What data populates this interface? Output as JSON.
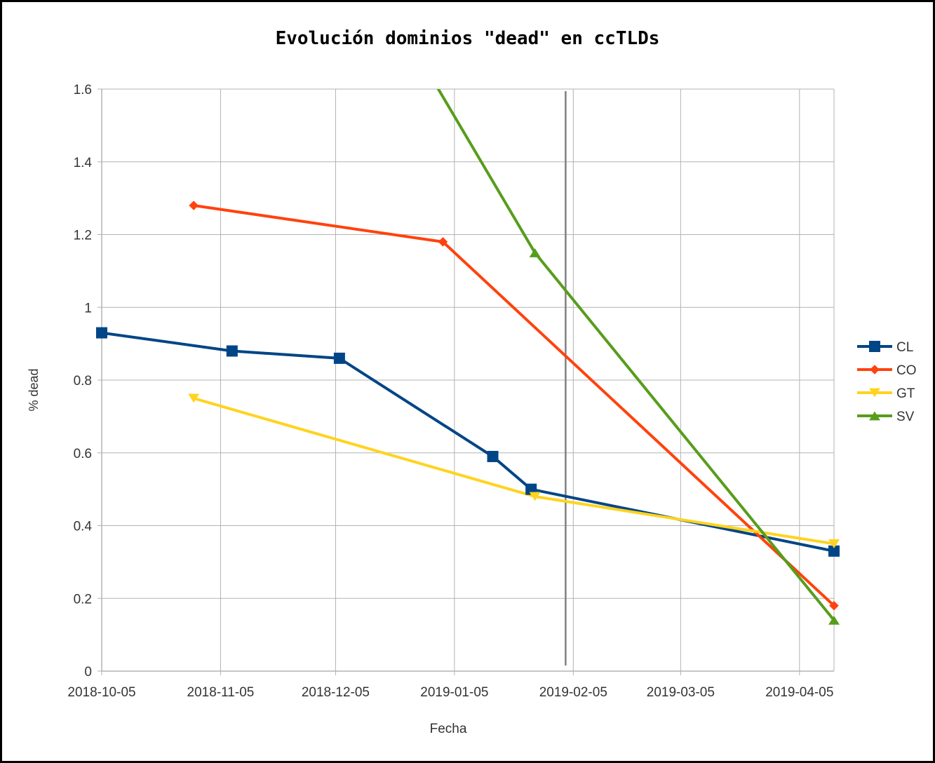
{
  "chart_data": {
    "type": "line",
    "title": "Evolución dominios \"dead\" en ccTLDs",
    "xlabel": "Fecha",
    "ylabel": "% dead",
    "x_ticks": [
      "2018-10-05",
      "2018-11-05",
      "2018-12-05",
      "2019-01-05",
      "2019-02-05",
      "2019-03-05",
      "2019-04-05"
    ],
    "y_ticks": [
      "0",
      "0.2",
      "0.4",
      "0.6",
      "0.8",
      "1",
      "1.2",
      "1.4",
      "1.6"
    ],
    "xlim": [
      "2018-10-05",
      "2019-04-14"
    ],
    "ylim": [
      0,
      1.6
    ],
    "grid": true,
    "legend_position": "right",
    "reference_line": {
      "x": "2019-02-03"
    },
    "series": [
      {
        "name": "CL",
        "color": "#004586",
        "marker": "square",
        "points": [
          {
            "x": "2018-10-05",
            "y": 0.93
          },
          {
            "x": "2018-11-08",
            "y": 0.88
          },
          {
            "x": "2018-12-06",
            "y": 0.86
          },
          {
            "x": "2019-01-15",
            "y": 0.59
          },
          {
            "x": "2019-01-25",
            "y": 0.5
          },
          {
            "x": "2019-04-14",
            "y": 0.33
          }
        ]
      },
      {
        "name": "CO",
        "color": "#ff420e",
        "marker": "diamond",
        "points": [
          {
            "x": "2018-10-29",
            "y": 1.28
          },
          {
            "x": "2019-01-02",
            "y": 1.18
          },
          {
            "x": "2019-04-14",
            "y": 0.18
          }
        ]
      },
      {
        "name": "GT",
        "color": "#ffd320",
        "marker": "triangle-down",
        "points": [
          {
            "x": "2018-10-29",
            "y": 0.75
          },
          {
            "x": "2019-01-26",
            "y": 0.48
          },
          {
            "x": "2019-04-14",
            "y": 0.35
          }
        ]
      },
      {
        "name": "SV",
        "color": "#579d1c",
        "marker": "triangle-up",
        "points": [
          {
            "x": "2018-12-29",
            "y": 1.65
          },
          {
            "x": "2019-01-26",
            "y": 1.15
          },
          {
            "x": "2019-04-14",
            "y": 0.14
          }
        ]
      }
    ]
  }
}
